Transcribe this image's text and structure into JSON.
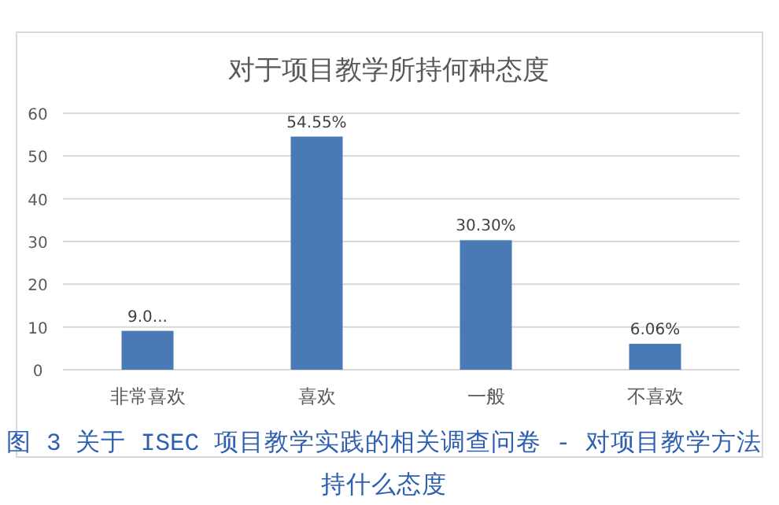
{
  "chart_data": {
    "type": "bar",
    "title": "对于项目教学所持何种态度",
    "categories": [
      "非常喜欢",
      "喜欢",
      "一般",
      "不喜欢"
    ],
    "values": [
      9.09,
      54.55,
      30.3,
      6.06
    ],
    "value_labels": [
      "9.0...",
      "54.55%",
      "30.30%",
      "6.06%"
    ],
    "color": "#4a7ab5",
    "ylim": [
      0,
      60
    ],
    "yticks": [
      0,
      10,
      20,
      30,
      40,
      50,
      60
    ],
    "grid": "y",
    "annotations": [
      "图 3 关于 ISEC 项目教学实践的相关调查问卷 - 对项目教学方法持什么态度"
    ]
  }
}
